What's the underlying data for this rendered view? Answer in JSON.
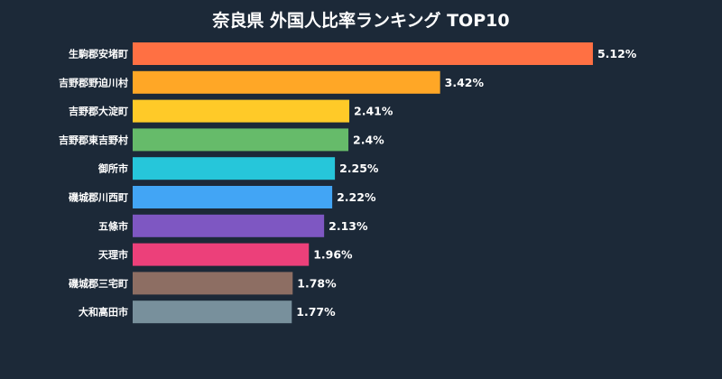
{
  "chart_data": {
    "type": "bar",
    "orientation": "horizontal",
    "title": "奈良県 外国人比率ランキング TOP10",
    "xlabel": "",
    "ylabel": "",
    "grid": false,
    "legend": "none",
    "value_suffix": "%",
    "categories": [
      "生駒郡安堵町",
      "吉野郡野迫川村",
      "吉野郡大淀町",
      "吉野郡東吉野村",
      "御所市",
      "磯城郡川西町",
      "五條市",
      "天理市",
      "磯城郡三宅町",
      "大和高田市"
    ],
    "values": [
      5.12,
      3.42,
      2.41,
      2.4,
      2.25,
      2.22,
      2.13,
      1.96,
      1.78,
      1.77
    ],
    "value_labels": [
      "5.12%",
      "3.42%",
      "2.41%",
      "2.4%",
      "2.25%",
      "2.22%",
      "2.13%",
      "1.96%",
      "1.78%",
      "1.77%"
    ],
    "colors": [
      "#ff7043",
      "#ffa726",
      "#ffca28",
      "#66bb6a",
      "#26c6da",
      "#42a5f5",
      "#7e57c2",
      "#ec407a",
      "#8d6e63",
      "#78909c"
    ]
  },
  "theme": {
    "background": "#1c2938",
    "text_color": "#ffffff"
  }
}
